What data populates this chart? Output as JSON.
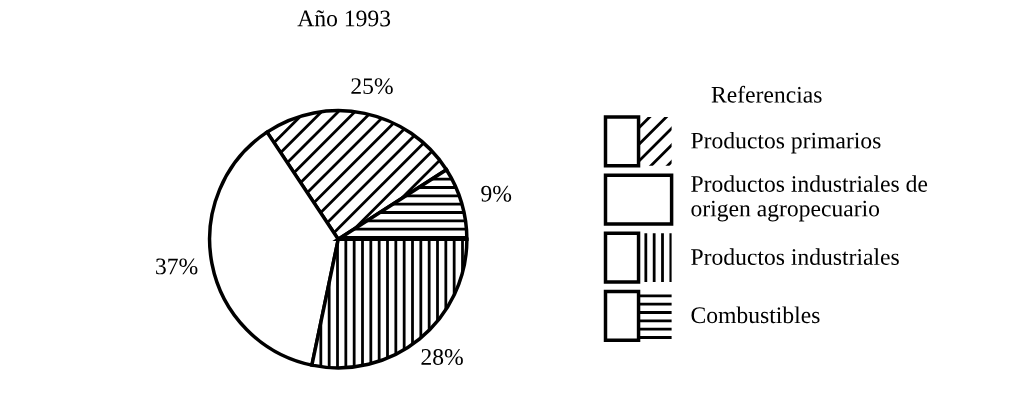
{
  "chart_data": {
    "type": "pie",
    "title": "Año 1993",
    "legend_title": "Referencias",
    "categories": [
      "Productos primarios",
      "Productos industriales de\norigen agropecuario",
      "Productos industriales",
      "Combustibles"
    ],
    "values": [
      25,
      37,
      28,
      9
    ],
    "colors": [
      "#ffffff",
      "#ffffff",
      "#ffffff",
      "#ffffff"
    ],
    "value_labels": [
      "25%",
      "37%",
      "28%",
      "9%"
    ],
    "legend": "right"
  }
}
